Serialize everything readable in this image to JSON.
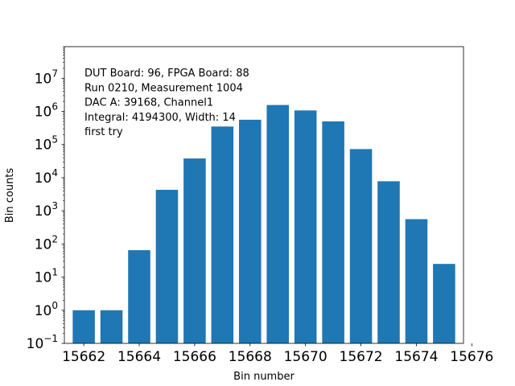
{
  "chart_data": {
    "type": "bar",
    "title": "",
    "xlabel": "Bin number",
    "ylabel": "Bin counts",
    "y_scale": "log",
    "xlim": [
      15661.3,
      15675.7
    ],
    "ylim": [
      0.1,
      90000000
    ],
    "grid": false,
    "bar_color": "#1f77b4",
    "x": [
      15662,
      15663,
      15664,
      15665,
      15666,
      15667,
      15668,
      15669,
      15670,
      15671,
      15672,
      15673,
      15674,
      15675
    ],
    "values": [
      1,
      1,
      65,
      4300,
      38000,
      350000,
      560000,
      1560000,
      1070000,
      500000,
      73000,
      7800,
      560,
      25
    ],
    "x_ticks": [
      15662,
      15664,
      15666,
      15668,
      15670,
      15672,
      15674,
      15676
    ],
    "x_tick_labels": [
      "15662",
      "15664",
      "15666",
      "15668",
      "15670",
      "15672",
      "15674",
      "15676"
    ],
    "y_ticks": [
      {
        "base": "10",
        "exp": "−1"
      },
      {
        "base": "10",
        "exp": "0"
      },
      {
        "base": "10",
        "exp": "1"
      },
      {
        "base": "10",
        "exp": "2"
      },
      {
        "base": "10",
        "exp": "3"
      },
      {
        "base": "10",
        "exp": "4"
      },
      {
        "base": "10",
        "exp": "5"
      },
      {
        "base": "10",
        "exp": "6"
      },
      {
        "base": "10",
        "exp": "7"
      }
    ],
    "annotation_lines": [
      "DUT Board: 96, FPGA Board: 88",
      "Run 0210, Measurement 1004",
      "DAC A: 39168, Channel1",
      "Integral: 4194300, Width: 14",
      "first try"
    ]
  }
}
